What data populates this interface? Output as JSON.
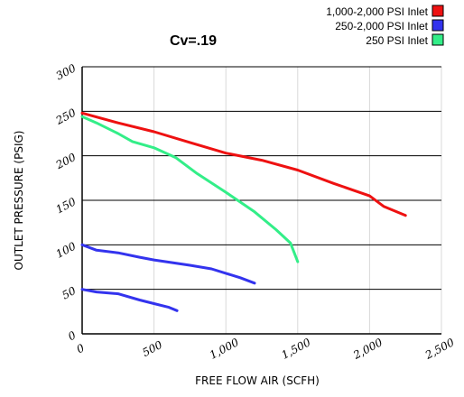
{
  "chart_data": {
    "type": "line",
    "title": "Cv=.19",
    "xlabel": "FREE FLOW AIR (SCFH)",
    "ylabel": "OUTLET PRESSURE (PSIG)",
    "xlim": [
      0,
      2500
    ],
    "ylim": [
      0,
      300
    ],
    "x_ticks": [
      0,
      500,
      1000,
      1500,
      2000,
      2500
    ],
    "x_tick_labels": [
      "0",
      "500",
      "1,000",
      "1,500",
      "2,000",
      "2,500"
    ],
    "y_ticks": [
      0,
      50,
      100,
      150,
      200,
      250,
      300
    ],
    "y_tick_labels": [
      "0",
      "50",
      "100",
      "150",
      "200",
      "250",
      "300"
    ],
    "grid": {
      "vertical": "light-gray",
      "horizontal": "black"
    },
    "legend_position": "top-right",
    "series": [
      {
        "name": "1,000-2,000 PSI Inlet",
        "color": "#ee1111",
        "points": [
          [
            0,
            248
          ],
          [
            250,
            237
          ],
          [
            500,
            227
          ],
          [
            750,
            215
          ],
          [
            1000,
            203
          ],
          [
            1250,
            195
          ],
          [
            1500,
            184
          ],
          [
            1750,
            169
          ],
          [
            2000,
            155
          ],
          [
            2100,
            143
          ],
          [
            2250,
            133
          ]
        ]
      },
      {
        "name": "250-2,000 PSI Inlet",
        "color": "#3333ee",
        "points": [
          [
            0,
            100
          ],
          [
            100,
            94
          ],
          [
            250,
            91
          ],
          [
            400,
            86
          ],
          [
            500,
            83
          ],
          [
            750,
            77
          ],
          [
            900,
            73
          ],
          [
            1000,
            68
          ],
          [
            1100,
            63
          ],
          [
            1200,
            57
          ]
        ]
      },
      {
        "name": "250-2,000 PSI Inlet",
        "color": "#3333ee",
        "points": [
          [
            0,
            50
          ],
          [
            100,
            47
          ],
          [
            250,
            45
          ],
          [
            400,
            38
          ],
          [
            500,
            34
          ],
          [
            600,
            30
          ],
          [
            660,
            26
          ]
        ]
      },
      {
        "name": "250 PSI Inlet",
        "color": "#33ee88",
        "points": [
          [
            0,
            244
          ],
          [
            100,
            237
          ],
          [
            250,
            225
          ],
          [
            350,
            216
          ],
          [
            500,
            209
          ],
          [
            650,
            198
          ],
          [
            800,
            180
          ],
          [
            1000,
            159
          ],
          [
            1200,
            137
          ],
          [
            1350,
            117
          ],
          [
            1450,
            102
          ],
          [
            1500,
            81
          ]
        ]
      }
    ],
    "legend": [
      {
        "label": "1,000-2,000 PSI Inlet",
        "color": "#ee1111"
      },
      {
        "label": "250-2,000 PSI Inlet",
        "color": "#3333ee"
      },
      {
        "label": "250 PSI Inlet",
        "color": "#33ee88"
      }
    ]
  }
}
